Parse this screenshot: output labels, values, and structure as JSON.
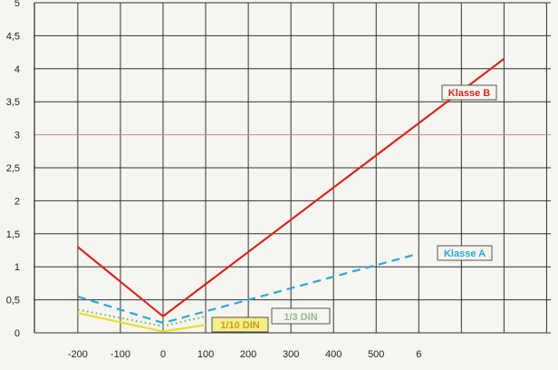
{
  "chart_data": {
    "type": "line",
    "title": "",
    "xlabel": "",
    "ylabel": "",
    "xlim": [
      -250,
      900
    ],
    "ylim": [
      0,
      5
    ],
    "grid": true,
    "x_ticks": [
      "-200",
      "-100",
      "0",
      "100",
      "200",
      "300",
      "400",
      "500",
      "6"
    ],
    "y_ticks": [
      "0",
      "0,5",
      "1",
      "1,5",
      "2",
      "2,5",
      "3",
      "3,5",
      "4",
      "4,5",
      "5"
    ],
    "series": [
      {
        "name": "Klasse B",
        "color": "#d42a1e",
        "style": "solid",
        "x": [
          -200,
          0,
          800
        ],
        "y": [
          1.3,
          0.25,
          4.15
        ]
      },
      {
        "name": "Klasse A",
        "color": "#2aa8d8",
        "style": "dashed",
        "x": [
          -200,
          0,
          600
        ],
        "y": [
          0.55,
          0.15,
          1.2
        ]
      },
      {
        "name": "1/3 DIN",
        "color": "#8dbf86",
        "style": "dotted",
        "x": [
          -200,
          0,
          100
        ],
        "y": [
          0.35,
          0.1,
          0.25
        ]
      },
      {
        "name": "1/10 DIN",
        "color": "#e6df2a",
        "style": "solid",
        "x": [
          -200,
          0,
          100
        ],
        "y": [
          0.3,
          0.02,
          0.12
        ]
      }
    ]
  }
}
